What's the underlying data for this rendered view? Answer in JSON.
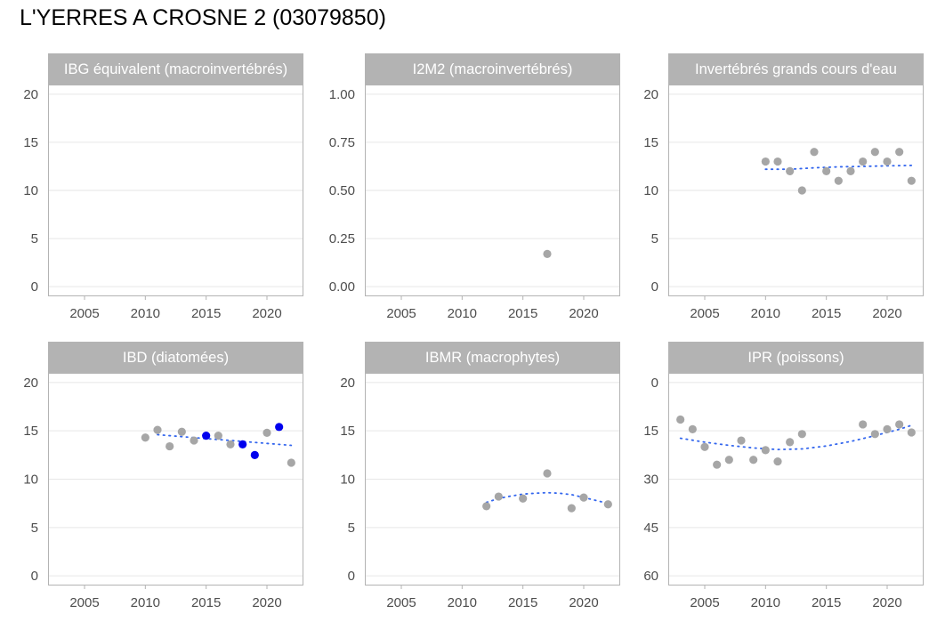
{
  "title": "L'YERRES A CROSNE 2 (03079850)",
  "colors": {
    "strip_bg": "#b3b3b3",
    "strip_text": "#ffffff",
    "panel_border": "#b3b3b3",
    "grid": "#e6e6e6",
    "point_grey": "#a6a6a6",
    "point_blue": "#0000ee",
    "trend": "#3366ee",
    "tick_text": "#4d4d4d"
  },
  "chart_data": [
    {
      "type": "scatter",
      "title": "IBG équivalent (macroinvertébrés)",
      "xlim": [
        2002,
        2023
      ],
      "ylim": [
        -1,
        21
      ],
      "xticks": [
        2005,
        2010,
        2015,
        2020
      ],
      "yticks": [
        0,
        5,
        10,
        15,
        20
      ],
      "ytick_labels": [
        "0",
        "5",
        "10",
        "15",
        "20"
      ],
      "y_reversed": false,
      "points": [],
      "trend": []
    },
    {
      "type": "scatter",
      "title": "I2M2 (macroinvertébrés)",
      "xlim": [
        2002,
        2023
      ],
      "ylim": [
        -0.05,
        1.05
      ],
      "xticks": [
        2005,
        2010,
        2015,
        2020
      ],
      "yticks": [
        0,
        0.25,
        0.5,
        0.75,
        1
      ],
      "ytick_labels": [
        "0.00",
        "0.25",
        "0.50",
        "0.75",
        "1.00"
      ],
      "y_reversed": false,
      "points": [
        {
          "x": 2017,
          "y": 0.17,
          "highlight": false
        }
      ],
      "trend": []
    },
    {
      "type": "scatter",
      "title": "Invertébrés grands cours d'eau",
      "xlim": [
        2002,
        2023
      ],
      "ylim": [
        -1,
        21
      ],
      "xticks": [
        2005,
        2010,
        2015,
        2020
      ],
      "yticks": [
        0,
        5,
        10,
        15,
        20
      ],
      "ytick_labels": [
        "0",
        "5",
        "10",
        "15",
        "20"
      ],
      "y_reversed": false,
      "points": [
        {
          "x": 2010,
          "y": 13,
          "highlight": false
        },
        {
          "x": 2011,
          "y": 13,
          "highlight": false
        },
        {
          "x": 2012,
          "y": 12,
          "highlight": false
        },
        {
          "x": 2013,
          "y": 10,
          "highlight": false
        },
        {
          "x": 2014,
          "y": 14,
          "highlight": false
        },
        {
          "x": 2015,
          "y": 12,
          "highlight": false
        },
        {
          "x": 2016,
          "y": 11,
          "highlight": false
        },
        {
          "x": 2017,
          "y": 12,
          "highlight": false
        },
        {
          "x": 2018,
          "y": 13,
          "highlight": false
        },
        {
          "x": 2019,
          "y": 14,
          "highlight": false
        },
        {
          "x": 2020,
          "y": 13,
          "highlight": false
        },
        {
          "x": 2021,
          "y": 14,
          "highlight": false
        },
        {
          "x": 2022,
          "y": 11,
          "highlight": false
        }
      ],
      "trend": [
        {
          "x": 2010,
          "y": 12.2
        },
        {
          "x": 2012,
          "y": 12.2
        },
        {
          "x": 2014,
          "y": 12.35
        },
        {
          "x": 2016,
          "y": 12.45
        },
        {
          "x": 2018,
          "y": 12.5
        },
        {
          "x": 2020,
          "y": 12.55
        },
        {
          "x": 2022,
          "y": 12.6
        }
      ]
    },
    {
      "type": "scatter",
      "title": "IBD (diatomées)",
      "xlim": [
        2002,
        2023
      ],
      "ylim": [
        -1,
        21
      ],
      "xticks": [
        2005,
        2010,
        2015,
        2020
      ],
      "yticks": [
        0,
        5,
        10,
        15,
        20
      ],
      "ytick_labels": [
        "0",
        "5",
        "10",
        "15",
        "20"
      ],
      "y_reversed": false,
      "points": [
        {
          "x": 2010,
          "y": 14.3,
          "highlight": false
        },
        {
          "x": 2011,
          "y": 15.1,
          "highlight": false
        },
        {
          "x": 2012,
          "y": 13.4,
          "highlight": false
        },
        {
          "x": 2013,
          "y": 14.9,
          "highlight": false
        },
        {
          "x": 2014,
          "y": 14.0,
          "highlight": false
        },
        {
          "x": 2015,
          "y": 14.5,
          "highlight": true
        },
        {
          "x": 2016,
          "y": 14.5,
          "highlight": false
        },
        {
          "x": 2017,
          "y": 13.6,
          "highlight": false
        },
        {
          "x": 2018,
          "y": 13.6,
          "highlight": true
        },
        {
          "x": 2019,
          "y": 12.5,
          "highlight": true
        },
        {
          "x": 2020,
          "y": 14.8,
          "highlight": false
        },
        {
          "x": 2021,
          "y": 15.4,
          "highlight": true
        },
        {
          "x": 2022,
          "y": 11.7,
          "highlight": false
        }
      ],
      "trend": [
        {
          "x": 2011,
          "y": 14.6
        },
        {
          "x": 2013,
          "y": 14.4
        },
        {
          "x": 2015,
          "y": 14.2
        },
        {
          "x": 2017,
          "y": 14.0
        },
        {
          "x": 2019,
          "y": 13.8
        },
        {
          "x": 2021,
          "y": 13.6
        },
        {
          "x": 2022,
          "y": 13.5
        }
      ]
    },
    {
      "type": "scatter",
      "title": "IBMR (macrophytes)",
      "xlim": [
        2002,
        2023
      ],
      "ylim": [
        -1,
        21
      ],
      "xticks": [
        2005,
        2010,
        2015,
        2020
      ],
      "yticks": [
        0,
        5,
        10,
        15,
        20
      ],
      "ytick_labels": [
        "0",
        "5",
        "10",
        "15",
        "20"
      ],
      "y_reversed": false,
      "points": [
        {
          "x": 2012,
          "y": 7.2,
          "highlight": false
        },
        {
          "x": 2013,
          "y": 8.2,
          "highlight": false
        },
        {
          "x": 2015,
          "y": 8.0,
          "highlight": false
        },
        {
          "x": 2017,
          "y": 10.6,
          "highlight": false
        },
        {
          "x": 2019,
          "y": 7.0,
          "highlight": false
        },
        {
          "x": 2020,
          "y": 8.1,
          "highlight": false
        },
        {
          "x": 2022,
          "y": 7.4,
          "highlight": false
        }
      ],
      "trend": [
        {
          "x": 2012,
          "y": 7.6
        },
        {
          "x": 2013,
          "y": 8.0
        },
        {
          "x": 2014,
          "y": 8.25
        },
        {
          "x": 2015,
          "y": 8.45
        },
        {
          "x": 2016,
          "y": 8.55
        },
        {
          "x": 2017,
          "y": 8.6
        },
        {
          "x": 2018,
          "y": 8.55
        },
        {
          "x": 2019,
          "y": 8.4
        },
        {
          "x": 2020,
          "y": 8.1
        },
        {
          "x": 2021,
          "y": 7.8
        },
        {
          "x": 2022,
          "y": 7.5
        }
      ]
    },
    {
      "type": "scatter",
      "title": "IPR (poissons)",
      "xlim": [
        2002,
        2023
      ],
      "ylim": [
        -3,
        63
      ],
      "xticks": [
        2005,
        2010,
        2015,
        2020
      ],
      "yticks": [
        0,
        15,
        30,
        45,
        60
      ],
      "ytick_labels": [
        "0",
        "15",
        "30",
        "45",
        "60"
      ],
      "y_reversed": true,
      "points": [
        {
          "x": 2003,
          "y": 11.5,
          "highlight": false
        },
        {
          "x": 2004,
          "y": 14.5,
          "highlight": false
        },
        {
          "x": 2005,
          "y": 20.0,
          "highlight": false
        },
        {
          "x": 2006,
          "y": 25.5,
          "highlight": false
        },
        {
          "x": 2007,
          "y": 24.0,
          "highlight": false
        },
        {
          "x": 2008,
          "y": 18.0,
          "highlight": false
        },
        {
          "x": 2009,
          "y": 24.0,
          "highlight": false
        },
        {
          "x": 2010,
          "y": 21.0,
          "highlight": false
        },
        {
          "x": 2011,
          "y": 24.5,
          "highlight": false
        },
        {
          "x": 2012,
          "y": 18.5,
          "highlight": false
        },
        {
          "x": 2013,
          "y": 16.0,
          "highlight": false
        },
        {
          "x": 2018,
          "y": 13.0,
          "highlight": false
        },
        {
          "x": 2019,
          "y": 16.0,
          "highlight": false
        },
        {
          "x": 2020,
          "y": 14.5,
          "highlight": false
        },
        {
          "x": 2021,
          "y": 13.0,
          "highlight": false
        },
        {
          "x": 2022,
          "y": 15.5,
          "highlight": false
        }
      ],
      "trend": [
        {
          "x": 2003,
          "y": 17.3
        },
        {
          "x": 2005,
          "y": 18.5
        },
        {
          "x": 2007,
          "y": 19.5
        },
        {
          "x": 2009,
          "y": 20.3
        },
        {
          "x": 2011,
          "y": 20.8
        },
        {
          "x": 2013,
          "y": 20.6
        },
        {
          "x": 2015,
          "y": 19.7
        },
        {
          "x": 2017,
          "y": 18.3
        },
        {
          "x": 2019,
          "y": 16.5
        },
        {
          "x": 2021,
          "y": 14.5
        },
        {
          "x": 2022,
          "y": 13.3
        }
      ]
    }
  ]
}
